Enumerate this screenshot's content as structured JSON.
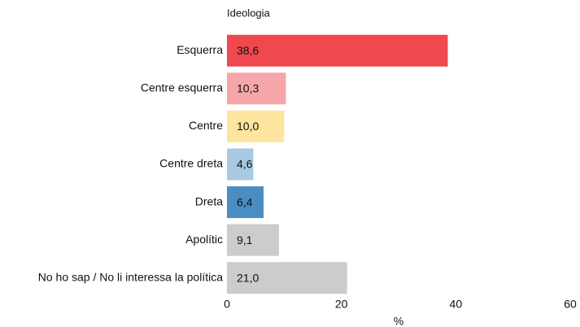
{
  "chart_data": {
    "type": "bar",
    "orientation": "horizontal",
    "title": "Ideologia",
    "xlabel": "%",
    "categories": [
      "Esquerra",
      "Centre esquerra",
      "Centre",
      "Centre dreta",
      "Dreta",
      "Apolític",
      "No ho sap / No li interessa la política"
    ],
    "values": [
      38.6,
      10.3,
      10.0,
      4.6,
      6.4,
      9.1,
      21.0
    ],
    "value_labels": [
      "38,6",
      "10,3",
      "10,0",
      "4,6",
      "6,4",
      "9,1",
      "21,0"
    ],
    "colors": [
      "#f0484f",
      "#f5a6a9",
      "#fde59f",
      "#a7c9e3",
      "#4a8dc2",
      "#cccccc",
      "#cccccc"
    ],
    "xlim": [
      0,
      60
    ],
    "xticks": [
      0,
      20,
      40,
      60
    ],
    "grid": false
  }
}
